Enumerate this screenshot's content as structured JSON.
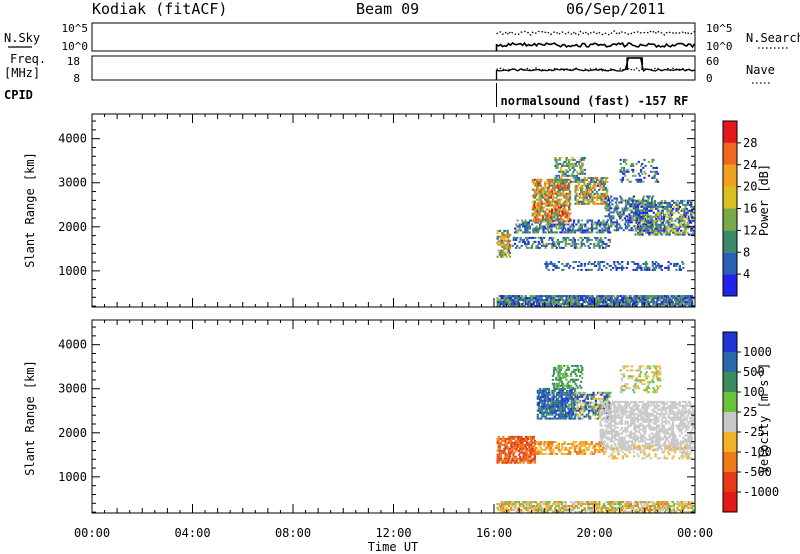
{
  "header": {
    "station": "Kodiak (fitACF)",
    "beam": "Beam 09",
    "date": "06/Sep/2011"
  },
  "mini_panels": {
    "nsky_label": "N.Sky",
    "nsearch_label": "N.Search",
    "nsky_ticks": [
      "10^5",
      "10^0"
    ],
    "nsearch_ticks": [
      "10^5",
      "10^0"
    ],
    "freq_label_1": "Freq.",
    "freq_label_2": "[MHz]",
    "freq_ticks": [
      "18",
      "8"
    ],
    "nave_label": "Nave",
    "nave_ticks": [
      "60",
      "0"
    ],
    "cpid_label": "CPID",
    "cpid_text": "normalsound (fast) -157 RF"
  },
  "chart_data": [
    {
      "type": "heatmap",
      "name": "power",
      "ylabel": "Slant Range [km]",
      "yticks": [
        "1000",
        "2000",
        "3000",
        "4000"
      ],
      "ylim": [
        180,
        4560
      ],
      "xlim": [
        0,
        24
      ],
      "data_start_hour": 16.1,
      "colorbar_label": "Power [dB]",
      "colorbar_ticks": [
        "4",
        "8",
        "12",
        "16",
        "20",
        "24",
        "28"
      ],
      "colorbar_colors": [
        "#1f24e6",
        "#2a5fb4",
        "#3a8a6a",
        "#7aa94a",
        "#d9c021",
        "#f0a020",
        "#f06820",
        "#e41818"
      ],
      "regions": [
        {
          "x0": 16.1,
          "x1": 23.9,
          "y0": 180,
          "y1": 420,
          "level": [
            0,
            3
          ],
          "density": 0.72
        },
        {
          "x0": 16.1,
          "x1": 16.6,
          "y0": 1300,
          "y1": 1900,
          "level": [
            1,
            6
          ],
          "density": 0.55
        },
        {
          "x0": 16.7,
          "x1": 20.6,
          "y0": 1500,
          "y1": 1750,
          "level": [
            0,
            3
          ],
          "density": 0.35
        },
        {
          "x0": 16.8,
          "x1": 20.6,
          "y0": 1850,
          "y1": 2150,
          "level": [
            0,
            3
          ],
          "density": 0.45
        },
        {
          "x0": 17.5,
          "x1": 19.0,
          "y0": 2100,
          "y1": 3050,
          "level": [
            2,
            7
          ],
          "density": 0.6
        },
        {
          "x0": 19.2,
          "x1": 20.5,
          "y0": 2500,
          "y1": 3100,
          "level": [
            1,
            6
          ],
          "density": 0.55
        },
        {
          "x0": 20.4,
          "x1": 22.3,
          "y0": 1900,
          "y1": 2700,
          "level": [
            0,
            3
          ],
          "density": 0.35
        },
        {
          "x0": 21.6,
          "x1": 23.9,
          "y0": 1800,
          "y1": 2600,
          "level": [
            0,
            4
          ],
          "density": 0.5
        },
        {
          "x0": 18.0,
          "x1": 23.5,
          "y0": 1000,
          "y1": 1200,
          "level": [
            0,
            2
          ],
          "density": 0.25
        },
        {
          "x0": 18.4,
          "x1": 19.6,
          "y0": 3000,
          "y1": 3550,
          "level": [
            1,
            4
          ],
          "density": 0.4
        },
        {
          "x0": 21.0,
          "x1": 22.5,
          "y0": 3000,
          "y1": 3500,
          "level": [
            0,
            3
          ],
          "density": 0.2
        }
      ]
    },
    {
      "type": "heatmap",
      "name": "velocity",
      "ylabel": "Slant Range [km]",
      "yticks": [
        "1000",
        "2000",
        "3000",
        "4000"
      ],
      "ylim": [
        180,
        4560
      ],
      "xlim": [
        0,
        24
      ],
      "xticks": [
        "00:00",
        "04:00",
        "08:00",
        "12:00",
        "16:00",
        "20:00",
        "00:00"
      ],
      "xlabel": "Time UT",
      "data_start_hour": 16.1,
      "colorbar_label": "Velocity [m s",
      "colorbar_label_sup": "-1",
      "colorbar_label_end": "]",
      "colorbar_ticks": [
        "1000",
        "500",
        "100",
        "25",
        "-25",
        "-100",
        "-500",
        "-1000"
      ],
      "colorbar_colors": [
        "#1f35d8",
        "#2a6aa8",
        "#3c8c60",
        "#6ac23a",
        "#c8c8c8",
        "#f2b22a",
        "#f07a18",
        "#e43a18",
        "#e41818"
      ],
      "regions": [
        {
          "x0": 16.1,
          "x1": 23.9,
          "y0": 180,
          "y1": 420,
          "level": [
            3,
            6
          ],
          "density": 0.55
        },
        {
          "x0": 16.1,
          "x1": 17.6,
          "y0": 1300,
          "y1": 1900,
          "level": [
            6,
            7
          ],
          "density": 0.6
        },
        {
          "x0": 17.6,
          "x1": 20.4,
          "y0": 1500,
          "y1": 1800,
          "level": [
            5,
            6
          ],
          "density": 0.4
        },
        {
          "x0": 17.7,
          "x1": 19.2,
          "y0": 2300,
          "y1": 3000,
          "level": [
            0,
            2
          ],
          "density": 0.6
        },
        {
          "x0": 19.2,
          "x1": 20.6,
          "y0": 2300,
          "y1": 2900,
          "level": [
            0,
            5
          ],
          "density": 0.45
        },
        {
          "x0": 18.3,
          "x1": 19.5,
          "y0": 3000,
          "y1": 3500,
          "level": [
            2,
            3
          ],
          "density": 0.4
        },
        {
          "x0": 20.2,
          "x1": 23.9,
          "y0": 1600,
          "y1": 2700,
          "level": [
            4,
            4
          ],
          "density": 0.45
        },
        {
          "x0": 20.5,
          "x1": 23.8,
          "y0": 1400,
          "y1": 1700,
          "level": [
            4,
            5
          ],
          "density": 0.25
        },
        {
          "x0": 21.0,
          "x1": 22.6,
          "y0": 2900,
          "y1": 3500,
          "level": [
            3,
            5
          ],
          "density": 0.25
        }
      ]
    }
  ]
}
